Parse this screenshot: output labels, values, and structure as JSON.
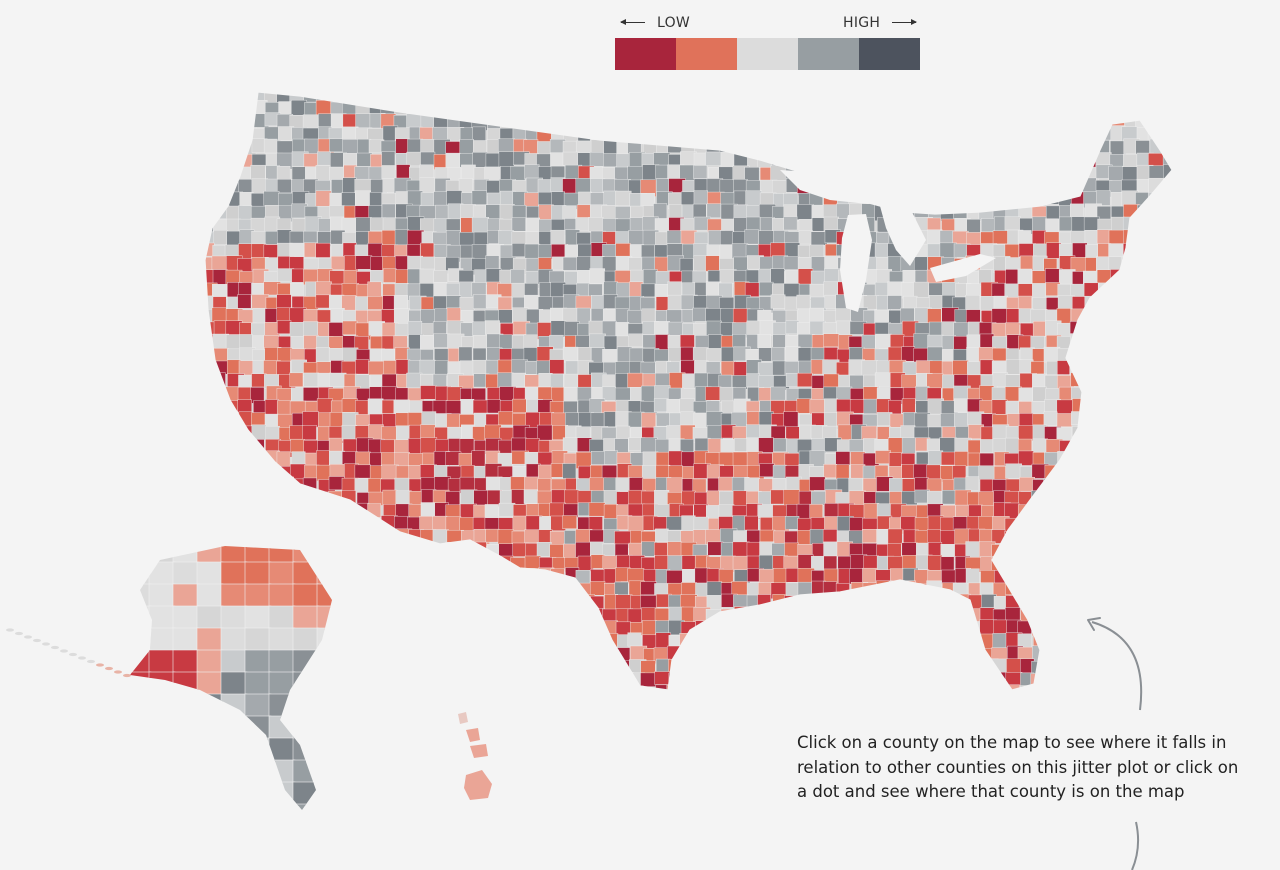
{
  "legend": {
    "low_label": "LOW",
    "high_label": "HIGH",
    "colors": [
      "#a8253c",
      "#e0725a",
      "#dcdcdc",
      "#979ea2",
      "#4d535e"
    ]
  },
  "map": {
    "region_fill_default": "#d9d9d9",
    "regions": [
      "contiguous-us",
      "alaska",
      "hawaii"
    ]
  },
  "caption": {
    "text": "Click on a county on the map to see where it falls in relation to other counties on this jitter plot or click on a dot and see where that county is on the map"
  }
}
